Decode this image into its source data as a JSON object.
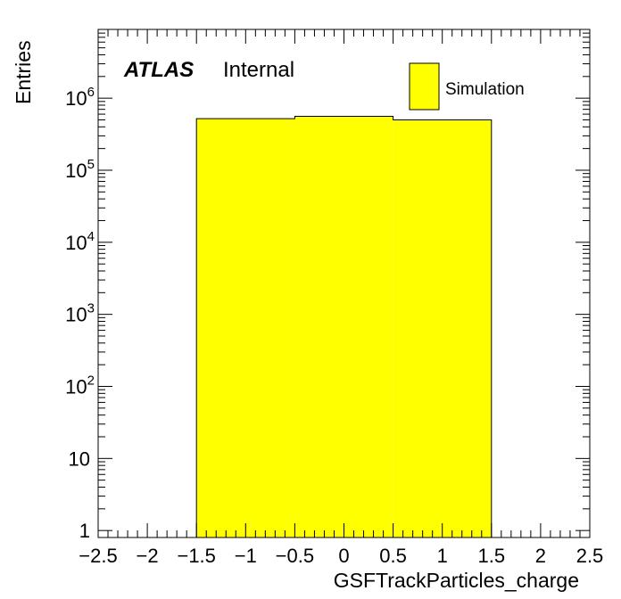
{
  "chart_data": {
    "type": "bar",
    "xlabel": "GSFTrackParticles_charge",
    "ylabel": "Entries",
    "xlim": [
      -2.5,
      2.5
    ],
    "ylim": [
      0.8,
      9000000
    ],
    "yscale": "log",
    "x_ticks": [
      "−2.5",
      "−2",
      "−1.5",
      "−1",
      "−0.5",
      "0",
      "0.5",
      "1",
      "1.5",
      "2",
      "2.5"
    ],
    "y_ticks": [
      {
        "value": 1,
        "base": "1",
        "exp": ""
      },
      {
        "value": 10,
        "base": "10",
        "exp": ""
      },
      {
        "value": 100,
        "base": "10",
        "exp": "2"
      },
      {
        "value": 1000,
        "base": "10",
        "exp": "3"
      },
      {
        "value": 10000,
        "base": "10",
        "exp": "4"
      },
      {
        "value": 100000,
        "base": "10",
        "exp": "5"
      },
      {
        "value": 1000000,
        "base": "10",
        "exp": "6"
      }
    ],
    "series": [
      {
        "name": "Simulation",
        "color": "#ffff00",
        "bin_edges": [
          -1.5,
          -0.5,
          0.5,
          1.5
        ],
        "values": [
          520000,
          560000,
          500000
        ]
      }
    ],
    "annotation": {
      "bold_italic": "ATLAS",
      "normal": "Internal"
    },
    "legend_position": "top-right",
    "grid": false
  }
}
